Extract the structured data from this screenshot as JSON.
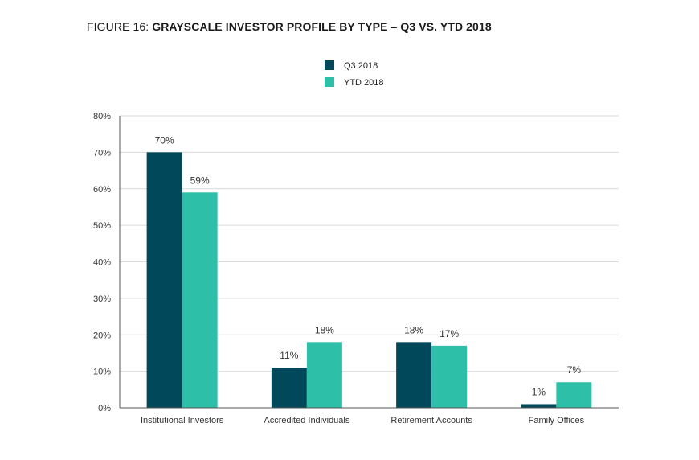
{
  "title_prefix": "FIGURE 16: ",
  "title_main": "GRAYSCALE INVESTOR PROFILE BY TYPE – Q3 VS. YTD 2018",
  "colors": {
    "q3": "#01495a",
    "ytd": "#2dbfa8",
    "grid": "#d9d9d9",
    "axis": "#555555"
  },
  "chart_data": {
    "type": "bar",
    "title": "FIGURE 16: GRAYSCALE INVESTOR PROFILE BY TYPE – Q3 VS. YTD 2018",
    "categories": [
      "Institutional Investors",
      "Accredited Individuals",
      "Retirement Accounts",
      "Family Offices"
    ],
    "series": [
      {
        "name": "Q3 2018",
        "values": [
          70,
          11,
          18,
          1
        ],
        "labels": [
          "70%",
          "11%",
          "18%",
          "1%"
        ]
      },
      {
        "name": "YTD 2018",
        "values": [
          59,
          18,
          17,
          7
        ],
        "labels": [
          "59%",
          "18%",
          "17%",
          "7%"
        ]
      }
    ],
    "y_ticks": [
      "0%",
      "10%",
      "20%",
      "30%",
      "40%",
      "50%",
      "60%",
      "70%",
      "80%"
    ],
    "ylim": [
      0,
      80
    ],
    "grid": true,
    "legend_position": "top-center"
  }
}
